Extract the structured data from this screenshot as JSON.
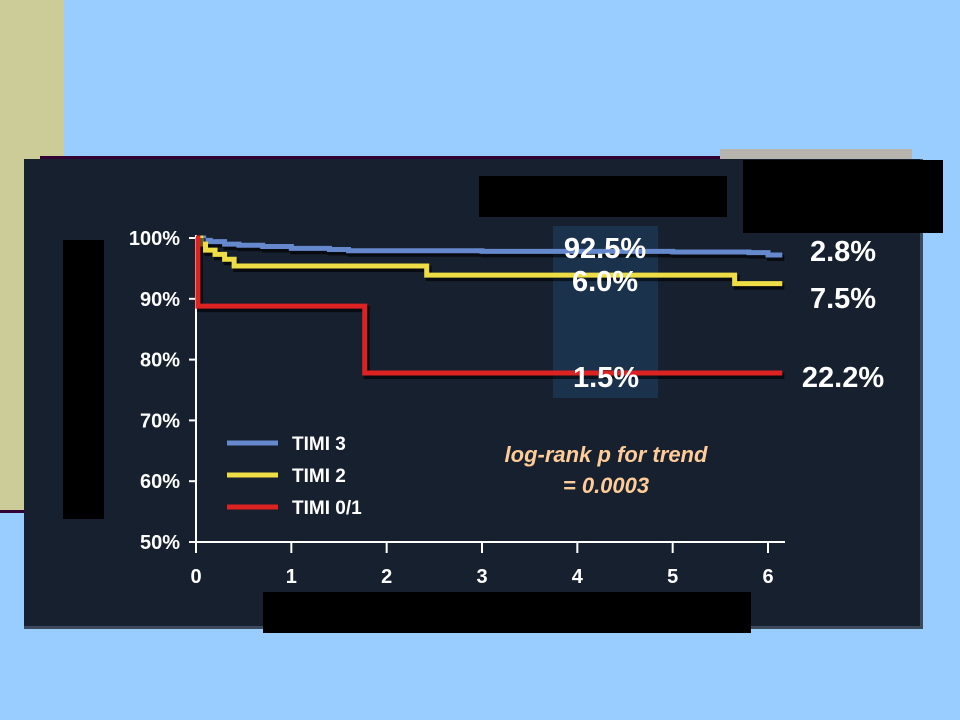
{
  "chart_data": {
    "type": "line",
    "step": true,
    "x_ticks": [
      "0",
      "1",
      "2",
      "3",
      "4",
      "5",
      "6"
    ],
    "y_ticks": [
      "50%",
      "60%",
      "70%",
      "80%",
      "90%",
      "100%"
    ],
    "xlim": [
      0,
      6
    ],
    "ylim": [
      50,
      100
    ],
    "series": [
      {
        "name": "TIMI 3",
        "color": "#6688cc",
        "points": [
          [
            0,
            100
          ],
          [
            0.03,
            100
          ],
          [
            0.08,
            99.6
          ],
          [
            0.15,
            99.4
          ],
          [
            0.3,
            99
          ],
          [
            0.45,
            98.8
          ],
          [
            0.7,
            98.6
          ],
          [
            1,
            98.3
          ],
          [
            1.4,
            98.1
          ],
          [
            1.6,
            97.9
          ],
          [
            3,
            97.8
          ],
          [
            5,
            97.7
          ],
          [
            5.8,
            97.6
          ],
          [
            6,
            97.2
          ],
          [
            6.15,
            97.2
          ]
        ],
        "end_label": "2.8%"
      },
      {
        "name": "TIMI 2",
        "color": "#eedd44",
        "points": [
          [
            0,
            100
          ],
          [
            0.05,
            99
          ],
          [
            0.1,
            98
          ],
          [
            0.2,
            97.3
          ],
          [
            0.3,
            96.5
          ],
          [
            0.4,
            95.4
          ],
          [
            2.4,
            95.4
          ],
          [
            2.42,
            93.9
          ],
          [
            5.6,
            93.9
          ],
          [
            5.65,
            92.5
          ],
          [
            6.15,
            92.5
          ]
        ],
        "end_label": "7.5%"
      },
      {
        "name": "TIMI 0/1",
        "color": "#dd2222",
        "points": [
          [
            0,
            100
          ],
          [
            0.02,
            88.8
          ],
          [
            1.75,
            88.8
          ],
          [
            1.77,
            77.8
          ],
          [
            6.15,
            77.8
          ]
        ],
        "end_label": "22.2%"
      }
    ],
    "annotations": {
      "mid_labels": [
        "92.5%",
        "6.0%",
        "1.5%"
      ],
      "note_line1": "log-rank p for trend",
      "note_line2": "= 0.0003"
    }
  }
}
